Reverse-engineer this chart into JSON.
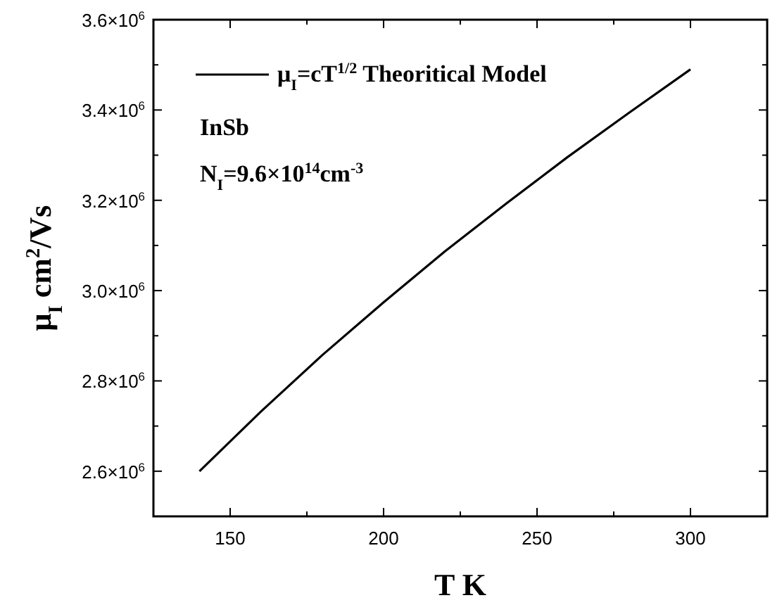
{
  "chart_data": {
    "type": "line",
    "xlabel": "T K",
    "ylabel": "μ$_{I}$ cm$^{2}$/Vs",
    "x": [
      140,
      160,
      180,
      200,
      220,
      240,
      260,
      280,
      300
    ],
    "series": [
      {
        "name": "μ$_{I}$=cT$^{1/2}$ Theoritical Model",
        "color": "#000000",
        "values": [
          2600000,
          2732000,
          2857000,
          2974000,
          3087000,
          3193000,
          3296000,
          3394000,
          3490000
        ]
      }
    ],
    "xlim": [
      125,
      325
    ],
    "xticks": [
      150,
      {
        "value": 175,
        "label": null
      },
      200,
      {
        "value": 225,
        "label": null
      },
      250,
      {
        "value": 275,
        "label": null
      },
      300,
      {
        "value": 325,
        "label": null
      }
    ],
    "ylim": [
      2500000,
      3600000
    ],
    "yticks": [
      {
        "value": 2600000,
        "label": "2.6×10$^{6}$"
      },
      {
        "value": 2700000,
        "label": null
      },
      {
        "value": 2800000,
        "label": "2.8×10$^{6}$"
      },
      {
        "value": 2900000,
        "label": null
      },
      {
        "value": 3000000,
        "label": "3.0×10$^{6}$"
      },
      {
        "value": 3100000,
        "label": null
      },
      {
        "value": 3200000,
        "label": "3.2×10$^{6}$"
      },
      {
        "value": 3300000,
        "label": null
      },
      {
        "value": 3400000,
        "label": "3.4×10$^{6}$"
      },
      {
        "value": 3500000,
        "label": null
      },
      {
        "value": 3600000,
        "label": "3.6×10$^{6}$"
      }
    ],
    "annotations": [
      "InSb",
      "N$_{I}$=9.6×10$^{14}$cm$^{-3}$"
    ],
    "legend": "top left",
    "grid": false,
    "marker": "none",
    "line_style": "solid"
  }
}
